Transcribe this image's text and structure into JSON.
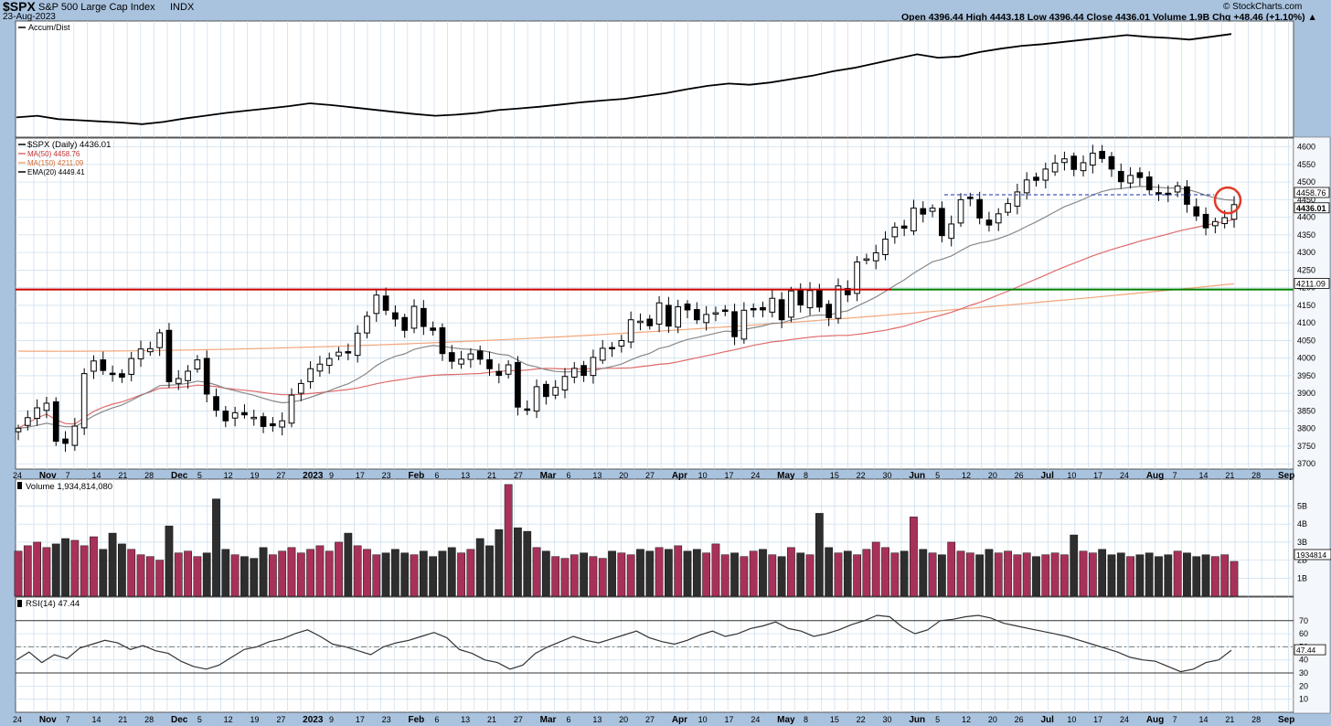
{
  "header": {
    "symbol": "$SPX",
    "name": "S&P 500 Large Cap Index",
    "exchange": "INDX",
    "date": "23-Aug-2023",
    "watermark": "© StockCharts.com",
    "ohlc": "Open 4396.44  High 4443.18  Low 4396.44  Close 4436.01  Volume 1.9B  Chg +48.46 (+1.10%) ▲"
  },
  "colors": {
    "background": "#a9c3df",
    "panel": "#ffffff",
    "grid": "#cfe0ee",
    "up_volume": "#a8315a",
    "down_volume": "#2e2e2e",
    "resistance_line": "#cc0000",
    "support_line": "#008000",
    "ma50": "#e06a6a",
    "ma150": "#f2a67a",
    "ema20": "#888888",
    "marker_circle": "#e03a2a"
  },
  "chart_data": [
    {
      "type": "line",
      "panel": "Accum/Dist",
      "legend": [
        "Accum/Dist"
      ],
      "values": [
        0.52,
        0.55,
        0.49,
        0.47,
        0.45,
        0.43,
        0.4,
        0.44,
        0.5,
        0.55,
        0.6,
        0.64,
        0.68,
        0.72,
        0.77,
        0.74,
        0.7,
        0.66,
        0.62,
        0.58,
        0.55,
        0.57,
        0.6,
        0.65,
        0.68,
        0.71,
        0.75,
        0.79,
        0.82,
        0.85,
        0.9,
        0.95,
        1.02,
        1.08,
        1.12,
        1.1,
        1.14,
        1.2,
        1.26,
        1.34,
        1.4,
        1.48,
        1.56,
        1.64,
        1.58,
        1.6,
        1.68,
        1.74,
        1.79,
        1.82,
        1.86,
        1.9,
        1.94,
        1.98,
        1.95,
        1.93,
        1.9,
        1.95,
        2.0
      ],
      "ylim": [
        0.3,
        2.1
      ]
    },
    {
      "type": "candlestick",
      "panel": "price",
      "legend": [
        "$SPX (Daily) 4436.01",
        "MA(50) 4458.76",
        "MA(150) 4211.09",
        "EMA(20) 4449.41"
      ],
      "x_ticks": [
        "24",
        "Nov",
        "7",
        "14",
        "21",
        "28",
        "Dec",
        "5",
        "12",
        "19",
        "27",
        "2023",
        "9",
        "17",
        "23",
        "Feb",
        "6",
        "13",
        "21",
        "27",
        "Mar",
        "6",
        "13",
        "20",
        "27",
        "Apr",
        "10",
        "17",
        "24",
        "May",
        "8",
        "15",
        "22",
        "30",
        "Jun",
        "5",
        "12",
        "20",
        "26",
        "Jul",
        "10",
        "17",
        "24",
        "Aug",
        "7",
        "14",
        "21",
        "28",
        "Sep"
      ],
      "y_ticks": [
        3700,
        3750,
        3800,
        3850,
        3900,
        3950,
        4000,
        4050,
        4100,
        4150,
        4200,
        4250,
        4300,
        4350,
        4400,
        4450,
        4500,
        4550,
        4600
      ],
      "ylim": [
        3685,
        4625
      ],
      "closes": [
        3801,
        3831,
        3859,
        3872,
        3764,
        3758,
        3807,
        3956,
        3992,
        3965,
        3957,
        3946,
        3999,
        4026,
        4027,
        4072,
        3933,
        3942,
        3963,
        3995,
        3898,
        3852,
        3822,
        3845,
        3839,
        3832,
        3806,
        3808,
        3822,
        3895,
        3928,
        3970,
        3983,
        3999,
        4017,
        4016,
        4071,
        4119,
        4179,
        4136,
        4111,
        4079,
        4147,
        4090,
        4079,
        4013,
        3991,
        3997,
        4012,
        3997,
        3970,
        3951,
        3981,
        3861,
        3855,
        3919,
        3891,
        3917,
        3948,
        3971,
        3951,
        4002,
        4028,
        4027,
        4050,
        4109,
        4105,
        4092,
        4157,
        4091,
        4146,
        4137,
        4109,
        4124,
        4129,
        4135,
        4061,
        4136,
        4138,
        4137,
        4170,
        4109,
        4191,
        4151,
        4192,
        4145,
        4115,
        4205,
        4180,
        4273,
        4282,
        4299,
        4338,
        4372,
        4369,
        4426,
        4409,
        4426,
        4348,
        4381,
        4450,
        4455,
        4398,
        4378,
        4410,
        4439,
        4472,
        4506,
        4505,
        4537,
        4554,
        4566,
        4536,
        4555,
        4582,
        4567,
        4537,
        4501,
        4519,
        4513,
        4478,
        4468,
        4464,
        4489,
        4437,
        4404,
        4370,
        4388,
        4399,
        4436
      ],
      "ma50_end": 4458.76,
      "ma150_end": 4211.09,
      "ema20_end": 4449.41,
      "horizontal_lines": [
        {
          "label": "resistance",
          "value": 4195,
          "color": "red"
        },
        {
          "label": "support",
          "value": 4195,
          "color": "green"
        },
        {
          "label": "prior high",
          "value": 4464,
          "style": "dashed",
          "color": "blue"
        }
      ],
      "price_tags": [
        "4458.76",
        "4436.01",
        "4211.09"
      ]
    },
    {
      "type": "bar",
      "panel": "Volume",
      "legend": [
        "Volume 1,934,814,080"
      ],
      "y_ticks": [
        "5B",
        "4B",
        "3B",
        "2B",
        "1B"
      ],
      "tag": "1934814",
      "values_billions": [
        2.5,
        2.8,
        3.0,
        2.7,
        2.9,
        3.2,
        3.1,
        2.8,
        3.3,
        2.6,
        3.5,
        2.9,
        2.6,
        2.3,
        2.2,
        2.0,
        3.9,
        2.4,
        2.5,
        2.2,
        2.4,
        5.4,
        2.6,
        2.3,
        2.2,
        2.1,
        2.7,
        2.3,
        2.5,
        2.7,
        2.4,
        2.6,
        2.8,
        2.5,
        3.0,
        3.5,
        2.8,
        2.6,
        2.3,
        2.4,
        2.6,
        2.4,
        2.3,
        2.5,
        2.2,
        2.5,
        2.7,
        2.4,
        2.6,
        3.2,
        2.8,
        3.7,
        6.2,
        3.8,
        3.6,
        2.7,
        2.5,
        2.2,
        2.1,
        2.3,
        2.4,
        2.2,
        2.1,
        2.5,
        2.4,
        2.3,
        2.6,
        2.5,
        2.7,
        2.6,
        2.8,
        2.5,
        2.6,
        2.4,
        2.9,
        2.3,
        2.4,
        2.2,
        2.5,
        2.6,
        2.3,
        2.2,
        2.7,
        2.4,
        2.3,
        4.6,
        2.7,
        2.4,
        2.5,
        2.3,
        2.6,
        3.0,
        2.7,
        2.4,
        2.5,
        4.4,
        2.6,
        2.4,
        2.3,
        3.0,
        2.5,
        2.4,
        2.3,
        2.6,
        2.4,
        2.5,
        2.3,
        2.4,
        2.2,
        2.3,
        2.4,
        2.3,
        3.4,
        2.5,
        2.4,
        2.6,
        2.3,
        2.4,
        2.2,
        2.3,
        2.4,
        2.2,
        2.3,
        2.5,
        2.4,
        2.2,
        2.3,
        2.2,
        2.3,
        1.93
      ],
      "ylim": [
        0,
        6.5
      ]
    },
    {
      "type": "line",
      "panel": "RSI",
      "legend": [
        "RSI(14) 47.44"
      ],
      "y_ticks": [
        10,
        20,
        30,
        40,
        50,
        60,
        70
      ],
      "levels": [
        70,
        30
      ],
      "tag": "47.44",
      "values": [
        40,
        46,
        38,
        44,
        41,
        49,
        52,
        55,
        53,
        48,
        51,
        47,
        45,
        39,
        35,
        33,
        36,
        42,
        48,
        50,
        54,
        56,
        60,
        63,
        58,
        52,
        50,
        47,
        44,
        50,
        53,
        55,
        58,
        61,
        57,
        48,
        45,
        40,
        38,
        33,
        36,
        45,
        50,
        54,
        58,
        55,
        53,
        56,
        59,
        62,
        57,
        54,
        52,
        55,
        59,
        62,
        58,
        60,
        64,
        66,
        69,
        64,
        62,
        58,
        60,
        63,
        67,
        70,
        74,
        73,
        65,
        60,
        63,
        70,
        71,
        73,
        74,
        72,
        68,
        66,
        64,
        62,
        60,
        58,
        55,
        52,
        49,
        46,
        42,
        40,
        39,
        35,
        31,
        33,
        38,
        40,
        47.44
      ],
      "ylim": [
        0,
        88
      ]
    }
  ]
}
